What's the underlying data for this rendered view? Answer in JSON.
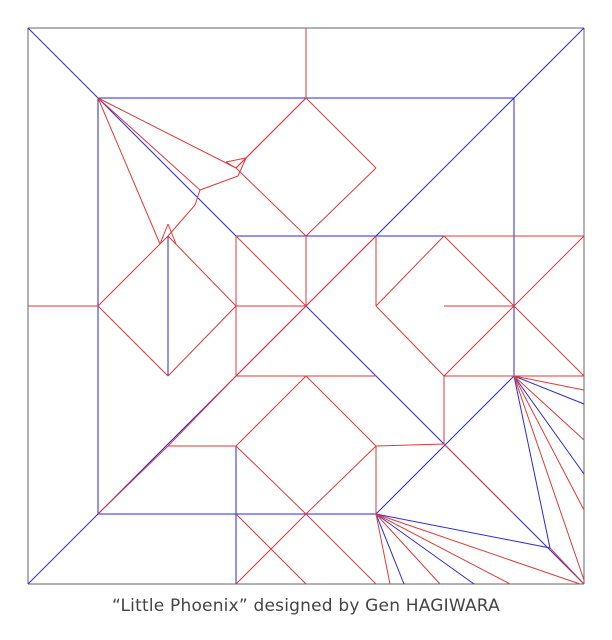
{
  "caption": "“Little Phoenix” designed by Gen HAGIWARA",
  "colors": {
    "border": "#666666",
    "mountain": "#2a2ad6",
    "valley": "#dd3b3b",
    "caption": "#444444"
  },
  "legend_semantics": {
    "blue": "mountain fold",
    "red": "valley fold"
  }
}
